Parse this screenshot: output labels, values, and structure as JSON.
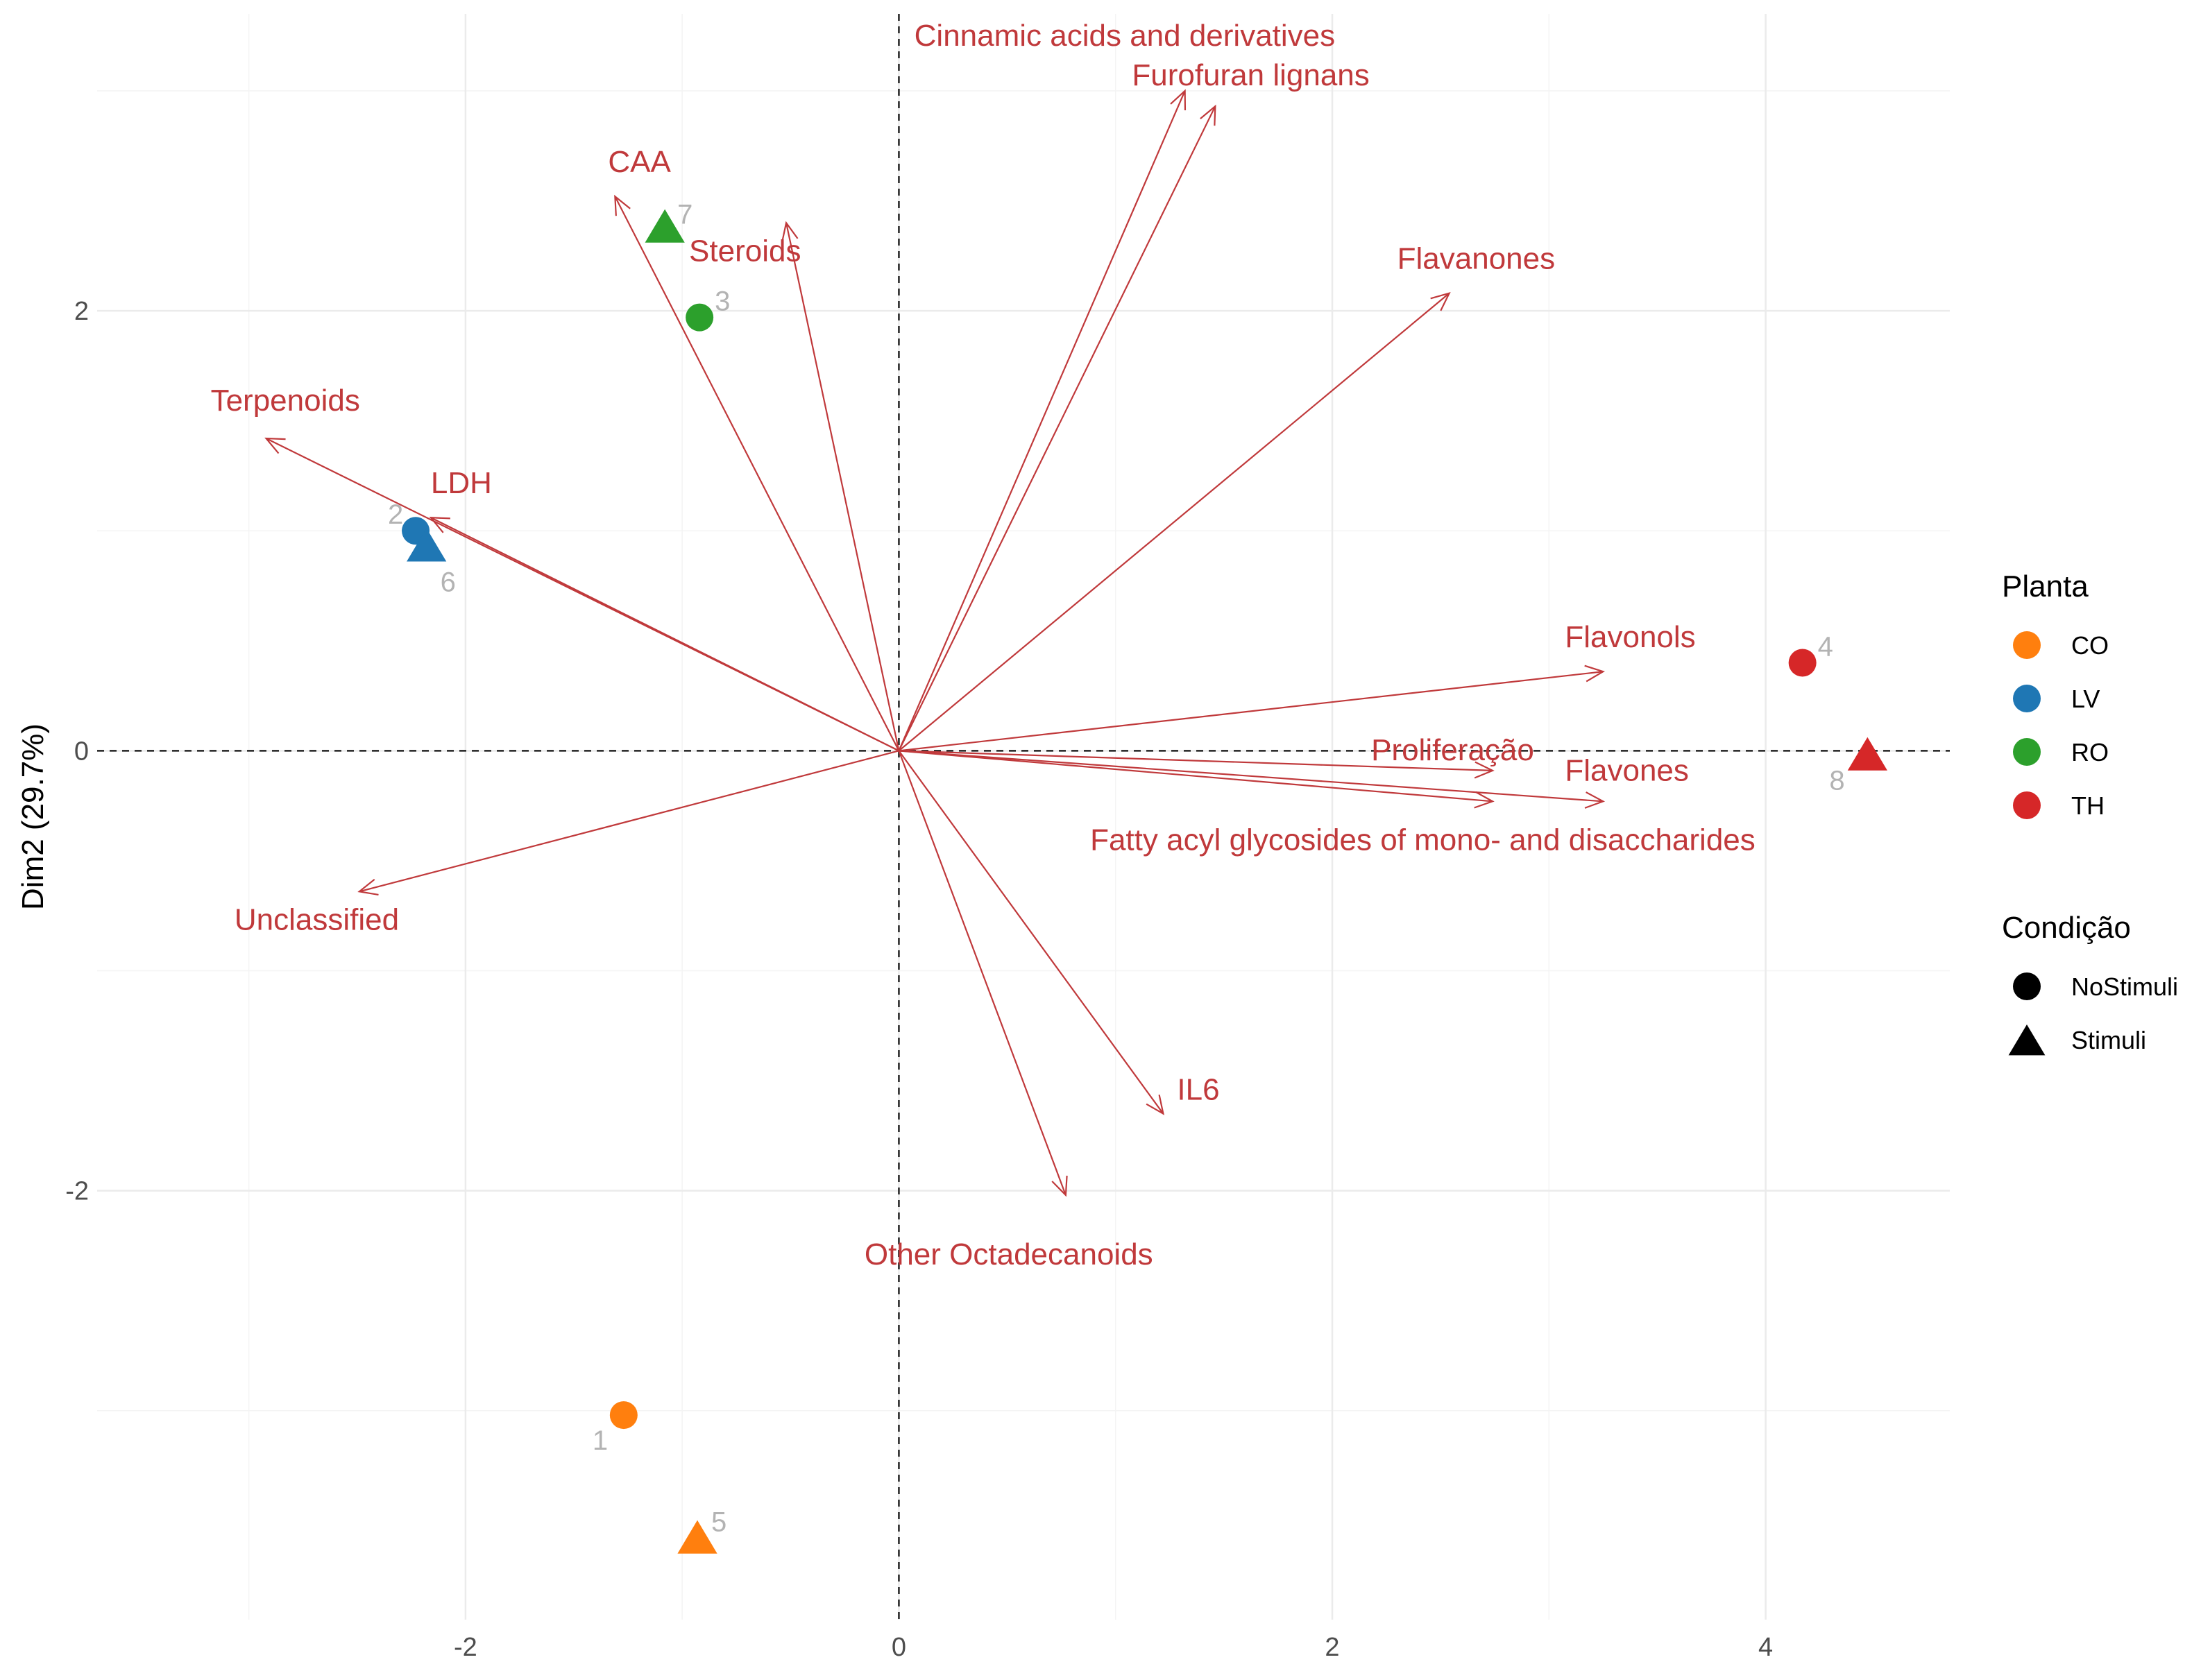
{
  "chart_data": {
    "type": "biplot",
    "xlabel": "",
    "ylabel": "Dim2 (29.7%)",
    "xlim": [
      -3.7,
      4.85
    ],
    "ylim": [
      -3.95,
      3.35
    ],
    "x_ticks": [
      -2,
      0,
      2,
      4
    ],
    "x_tick_labels": [
      "-2",
      "0",
      "2",
      "4"
    ],
    "y_ticks": [
      -2,
      0,
      2
    ],
    "y_tick_labels": [
      "-2",
      "0",
      "2"
    ],
    "grid": true,
    "reference_lines": {
      "x": 0,
      "y": 0
    },
    "variables": [
      {
        "name": "Cinnamic acids and derivatives",
        "x": 1.32,
        "y": 3.0
      },
      {
        "name": "Furofuran lignans",
        "x": 1.46,
        "y": 2.93
      },
      {
        "name": "CAA",
        "x": -1.31,
        "y": 2.52
      },
      {
        "name": "Steroids",
        "x": -0.52,
        "y": 2.4
      },
      {
        "name": "Flavanones",
        "x": 2.54,
        "y": 2.08
      },
      {
        "name": "Terpenoids",
        "x": -2.92,
        "y": 1.42
      },
      {
        "name": "LDH",
        "x": -2.16,
        "y": 1.06
      },
      {
        "name": "Flavonols",
        "x": 3.25,
        "y": 0.36
      },
      {
        "name": "Proliferação",
        "x": 2.74,
        "y": -0.09
      },
      {
        "name": "Flavones",
        "x": 3.25,
        "y": -0.23
      },
      {
        "name": "Fatty acyl glycosides of mono- and disaccharides",
        "x": 2.74,
        "y": -0.23
      },
      {
        "name": "Unclassified",
        "x": -2.49,
        "y": -0.64
      },
      {
        "name": "IL6",
        "x": 1.22,
        "y": -1.65
      },
      {
        "name": "Other Octadecanoids",
        "x": 0.77,
        "y": -2.02
      }
    ],
    "points": [
      {
        "label": "1",
        "planta": "CO",
        "condicao": "NoStimuli",
        "x": -1.27,
        "y": -3.02
      },
      {
        "label": "5",
        "planta": "CO",
        "condicao": "Stimuli",
        "x": -0.93,
        "y": -3.58
      },
      {
        "label": "2",
        "planta": "LV",
        "condicao": "NoStimuli",
        "x": -2.23,
        "y": 1.0
      },
      {
        "label": "6",
        "planta": "LV",
        "condicao": "Stimuli",
        "x": -2.18,
        "y": 0.93
      },
      {
        "label": "3",
        "planta": "RO",
        "condicao": "NoStimuli",
        "x": -0.92,
        "y": 1.97
      },
      {
        "label": "7",
        "planta": "RO",
        "condicao": "Stimuli",
        "x": -1.08,
        "y": 2.38
      },
      {
        "label": "4",
        "planta": "TH",
        "condicao": "NoStimuli",
        "x": 4.17,
        "y": 0.4
      },
      {
        "label": "8",
        "planta": "TH",
        "condicao": "Stimuli",
        "x": 4.47,
        "y": -0.02
      }
    ],
    "colors": {
      "CO": "#ff7f0e",
      "LV": "#1f77b4",
      "RO": "#2ca02c",
      "TH": "#d62728",
      "arrows": "#c0393b"
    },
    "legend": {
      "placement": "right",
      "color_title": "Planta",
      "color_entries": [
        "CO",
        "LV",
        "RO",
        "TH"
      ],
      "shape_title": "Condição",
      "shape_entries": [
        "NoStimuli",
        "Stimuli"
      ]
    }
  }
}
